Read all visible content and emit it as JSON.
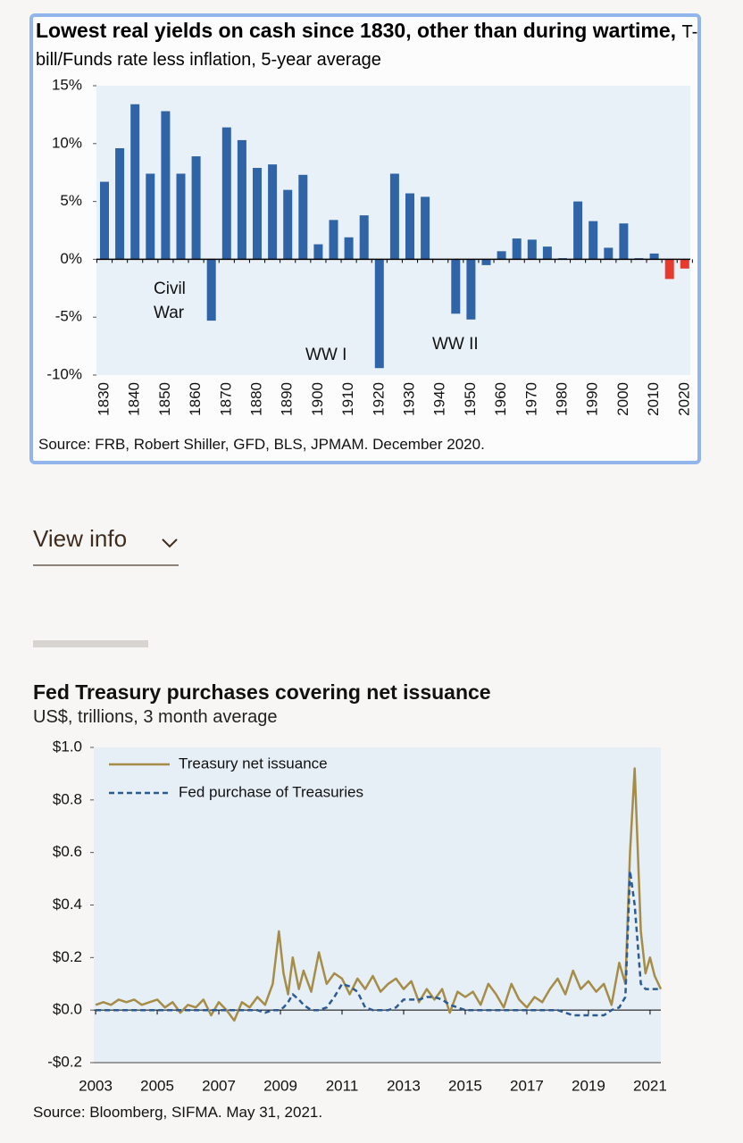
{
  "chart_data": [
    {
      "type": "bar",
      "title": "Lowest real yields on cash since 1830, other than during wartime,",
      "subtitle": "T-bill/Funds rate less inflation, 5-year average",
      "categories": [
        "1830",
        null,
        "1840",
        null,
        "1850",
        null,
        "1860",
        null,
        "1870",
        null,
        "1880",
        null,
        "1890",
        null,
        "1900",
        null,
        "1910",
        null,
        "1920",
        null,
        "1930",
        null,
        "1940",
        null,
        "1950",
        null,
        "1960",
        null,
        "1970",
        null,
        "1980",
        null,
        "1990",
        null,
        "2000",
        null,
        "2010",
        null,
        "2020"
      ],
      "values": [
        6.7,
        9.6,
        13.4,
        7.4,
        12.8,
        7.4,
        8.9,
        -5.3,
        11.4,
        10.3,
        7.9,
        8.2,
        6.0,
        7.3,
        1.3,
        3.4,
        1.9,
        3.8,
        -9.4,
        7.4,
        5.7,
        5.4,
        0.0,
        -4.7,
        -5.2,
        -0.5,
        0.7,
        1.8,
        1.7,
        1.1,
        0.1,
        5.0,
        3.3,
        1.0,
        3.1,
        0.1,
        0.5,
        -1.7,
        -0.8
      ],
      "colors": [
        "#2f65a7",
        "#2f65a7",
        "#2f65a7",
        "#2f65a7",
        "#2f65a7",
        "#2f65a7",
        "#2f65a7",
        "#2f65a7",
        "#2f65a7",
        "#2f65a7",
        "#2f65a7",
        "#2f65a7",
        "#2f65a7",
        "#2f65a7",
        "#2f65a7",
        "#2f65a7",
        "#2f65a7",
        "#2f65a7",
        "#2f65a7",
        "#2f65a7",
        "#2f65a7",
        "#2f65a7",
        "#2f65a7",
        "#2f65a7",
        "#2f65a7",
        "#2f65a7",
        "#2f65a7",
        "#2f65a7",
        "#2f65a7",
        "#2f65a7",
        "#2f65a7",
        "#2f65a7",
        "#2f65a7",
        "#2f65a7",
        "#2f65a7",
        "#2f65a7",
        "#2f65a7",
        "#e8392f",
        "#e8392f"
      ],
      "ylim": [
        -10,
        15
      ],
      "yticks": [
        {
          "value": 15,
          "label": "15%"
        },
        {
          "value": 10,
          "label": "10%"
        },
        {
          "value": 5,
          "label": "5%"
        },
        {
          "value": 0,
          "label": "0%"
        },
        {
          "value": -5,
          "label": "-5%"
        },
        {
          "value": -10,
          "label": "-10%"
        }
      ],
      "grid": false,
      "annotations": [
        "Civil War",
        "WW I",
        "WW II"
      ],
      "source": "Source: FRB, Robert Shiller, GFD, BLS, JPMAM.  December 2020."
    },
    {
      "type": "line",
      "title": "Fed Treasury purchases covering net issuance",
      "subtitle": "US$, trillions, 3 month average",
      "x": [
        2003,
        2003.25,
        2003.5,
        2003.75,
        2004,
        2004.25,
        2004.5,
        2004.75,
        2005,
        2005.25,
        2005.5,
        2005.75,
        2006,
        2006.25,
        2006.5,
        2006.75,
        2007,
        2007.25,
        2007.5,
        2007.75,
        2008,
        2008.25,
        2008.5,
        2008.75,
        2008.95,
        2009.1,
        2009.25,
        2009.4,
        2009.6,
        2009.75,
        2010,
        2010.25,
        2010.5,
        2010.75,
        2011,
        2011.25,
        2011.5,
        2011.75,
        2012,
        2012.25,
        2012.5,
        2012.75,
        2013,
        2013.25,
        2013.5,
        2013.75,
        2014,
        2014.25,
        2014.5,
        2014.75,
        2015,
        2015.25,
        2015.5,
        2015.75,
        2016,
        2016.25,
        2016.5,
        2016.75,
        2017,
        2017.25,
        2017.5,
        2017.75,
        2018,
        2018.25,
        2018.5,
        2018.75,
        2019,
        2019.25,
        2019.5,
        2019.75,
        2020,
        2020.2,
        2020.35,
        2020.5,
        2020.7,
        2020.85,
        2021,
        2021.15,
        2021.35
      ],
      "series": [
        {
          "name": "Treasury net issuance",
          "color": "#a68d47",
          "style": "solid",
          "values": [
            0.02,
            0.03,
            0.02,
            0.04,
            0.03,
            0.04,
            0.02,
            0.03,
            0.04,
            0.01,
            0.03,
            -0.01,
            0.02,
            0.01,
            0.04,
            -0.02,
            0.03,
            0.0,
            -0.04,
            0.03,
            0.01,
            0.05,
            0.02,
            0.1,
            0.3,
            0.14,
            0.06,
            0.2,
            0.08,
            0.15,
            0.07,
            0.22,
            0.1,
            0.14,
            0.12,
            0.06,
            0.12,
            0.08,
            0.13,
            0.07,
            0.1,
            0.12,
            0.08,
            0.11,
            0.03,
            0.08,
            0.04,
            0.08,
            -0.01,
            0.07,
            0.05,
            0.07,
            0.02,
            0.1,
            0.06,
            0.01,
            0.1,
            0.04,
            0.01,
            0.05,
            0.03,
            0.08,
            0.12,
            0.06,
            0.15,
            0.08,
            0.11,
            0.07,
            0.1,
            0.02,
            0.18,
            0.1,
            0.6,
            0.92,
            0.3,
            0.14,
            0.2,
            0.13,
            0.08
          ]
        },
        {
          "name": "Fed purchase of Treasuries",
          "color": "#2c5b92",
          "style": "dashed",
          "values": [
            0.0,
            0.0,
            0.0,
            0.0,
            0.0,
            0.0,
            0.0,
            0.0,
            0.0,
            0.0,
            0.0,
            0.0,
            0.0,
            0.0,
            0.0,
            0.0,
            0.0,
            0.0,
            0.0,
            0.0,
            0.0,
            0.0,
            -0.01,
            0.0,
            0.0,
            0.01,
            0.03,
            0.06,
            0.04,
            0.02,
            0.0,
            0.0,
            0.01,
            0.05,
            0.1,
            0.09,
            0.07,
            0.01,
            0.0,
            0.0,
            0.0,
            0.01,
            0.04,
            0.04,
            0.04,
            0.05,
            0.05,
            0.04,
            0.02,
            0.01,
            0.0,
            0.0,
            0.0,
            0.0,
            0.0,
            0.0,
            0.0,
            0.0,
            0.0,
            0.0,
            0.0,
            0.0,
            0.0,
            -0.01,
            -0.02,
            -0.02,
            -0.02,
            -0.02,
            -0.02,
            0.0,
            0.01,
            0.05,
            0.53,
            0.4,
            0.1,
            0.08,
            0.08,
            0.08,
            0.08
          ]
        }
      ],
      "xlim": [
        2002.94,
        2021.35
      ],
      "xticks": [
        2003,
        2005,
        2007,
        2009,
        2011,
        2013,
        2015,
        2017,
        2019,
        2021
      ],
      "ylim": [
        -0.2,
        1.0
      ],
      "yticks": [
        {
          "value": 1.0,
          "label": "$1.0"
        },
        {
          "value": 0.8,
          "label": "$0.8"
        },
        {
          "value": 0.6,
          "label": "$0.6"
        },
        {
          "value": 0.4,
          "label": "$0.4"
        },
        {
          "value": 0.2,
          "label": "$0.2"
        },
        {
          "value": 0.0,
          "label": "$0.0"
        },
        {
          "value": -0.2,
          "label": "-$0.2"
        }
      ],
      "legend": "top-left",
      "source": "Source: Bloomberg, SIFMA. May 31, 2021."
    }
  ],
  "view_info": {
    "label": "View info"
  }
}
